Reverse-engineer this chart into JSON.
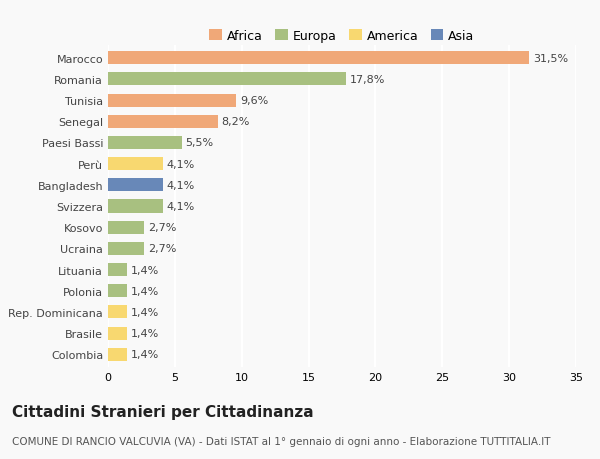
{
  "countries": [
    "Marocco",
    "Romania",
    "Tunisia",
    "Senegal",
    "Paesi Bassi",
    "Perù",
    "Bangladesh",
    "Svizzera",
    "Kosovo",
    "Ucraina",
    "Lituania",
    "Polonia",
    "Rep. Dominicana",
    "Brasile",
    "Colombia"
  ],
  "values": [
    31.5,
    17.8,
    9.6,
    8.2,
    5.5,
    4.1,
    4.1,
    4.1,
    2.7,
    2.7,
    1.4,
    1.4,
    1.4,
    1.4,
    1.4
  ],
  "labels": [
    "31,5%",
    "17,8%",
    "9,6%",
    "8,2%",
    "5,5%",
    "4,1%",
    "4,1%",
    "4,1%",
    "2,7%",
    "2,7%",
    "1,4%",
    "1,4%",
    "1,4%",
    "1,4%",
    "1,4%"
  ],
  "colors": [
    "#F0A878",
    "#A8C080",
    "#F0A878",
    "#F0A878",
    "#A8C080",
    "#F8D870",
    "#6888B8",
    "#A8C080",
    "#A8C080",
    "#A8C080",
    "#A8C080",
    "#A8C080",
    "#F8D870",
    "#F8D870",
    "#F8D870"
  ],
  "legend_labels": [
    "Africa",
    "Europa",
    "America",
    "Asia"
  ],
  "legend_colors": [
    "#F0A878",
    "#A8C080",
    "#F8D870",
    "#6888B8"
  ],
  "title": "Cittadini Stranieri per Cittadinanza",
  "subtitle": "COMUNE DI RANCIO VALCUVIA (VA) - Dati ISTAT al 1° gennaio di ogni anno - Elaborazione TUTTITALIA.IT",
  "xlim": [
    0,
    35
  ],
  "xticks": [
    0,
    5,
    10,
    15,
    20,
    25,
    30,
    35
  ],
  "background_color": "#f9f9f9",
  "bar_height": 0.62,
  "title_fontsize": 11,
  "subtitle_fontsize": 7.5,
  "label_fontsize": 8,
  "tick_fontsize": 8,
  "legend_fontsize": 9
}
